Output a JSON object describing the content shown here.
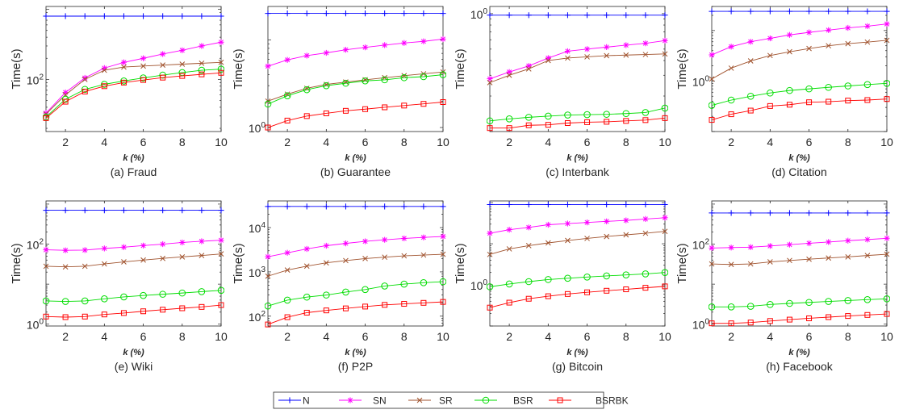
{
  "figure": {
    "legend": {
      "placement": "bottom-center",
      "items": [
        {
          "name": "N",
          "color": "#0000ff",
          "marker": "plus"
        },
        {
          "name": "SN",
          "color": "#ff00ff",
          "marker": "asterisk"
        },
        {
          "name": "SR",
          "color": "#a0522d",
          "marker": "x"
        },
        {
          "name": "BSR",
          "color": "#00dd00",
          "marker": "circle"
        },
        {
          "name": "BSRBK",
          "color": "#ff0000",
          "marker": "square"
        }
      ]
    }
  },
  "chart_data": [
    {
      "type": "line",
      "caption": "(a) Fraud",
      "xlabel": "k (%)",
      "ylabel": "Time(s)",
      "yscale": "log",
      "ylim": [
        18,
        1100
      ],
      "xlim": [
        1,
        10
      ],
      "grid": false,
      "x": [
        1,
        2,
        3,
        4,
        5,
        6,
        7,
        8,
        9,
        10
      ],
      "yticks": [
        {
          "value": 100,
          "base": "10",
          "exp": "2"
        }
      ],
      "xticks": [
        2,
        4,
        6,
        8,
        10
      ],
      "series": [
        {
          "name": "N",
          "values": [
            800,
            800,
            800,
            800,
            800,
            800,
            800,
            800,
            800,
            800
          ]
        },
        {
          "name": "SN",
          "values": [
            33,
            65,
            105,
            145,
            175,
            200,
            230,
            260,
            300,
            340
          ]
        },
        {
          "name": "SR",
          "values": [
            32,
            60,
            100,
            135,
            150,
            155,
            160,
            165,
            170,
            175
          ]
        },
        {
          "name": "BSR",
          "values": [
            29,
            52,
            72,
            85,
            95,
            105,
            115,
            125,
            135,
            140
          ]
        },
        {
          "name": "BSRBK",
          "values": [
            28,
            48,
            67,
            80,
            90,
            98,
            106,
            112,
            118,
            124
          ]
        }
      ]
    },
    {
      "type": "line",
      "caption": "(b) Guarantee",
      "xlabel": "k (%)",
      "ylabel": "Time(s)",
      "yscale": "log",
      "ylim": [
        0.9,
        24
      ],
      "xlim": [
        1,
        10
      ],
      "grid": false,
      "x": [
        1,
        2,
        3,
        4,
        5,
        6,
        7,
        8,
        9,
        10
      ],
      "yticks": [
        {
          "value": 1,
          "base": "10",
          "exp": "0"
        }
      ],
      "xticks": [
        2,
        4,
        6,
        8,
        10
      ],
      "series": [
        {
          "name": "N",
          "values": [
            20,
            20,
            20,
            20,
            20,
            20,
            20,
            20,
            20,
            20
          ]
        },
        {
          "name": "SN",
          "values": [
            5.0,
            5.9,
            6.6,
            7.1,
            7.7,
            8.2,
            8.7,
            9.2,
            9.6,
            10.2
          ]
        },
        {
          "name": "SR",
          "values": [
            2.0,
            2.4,
            2.8,
            3.1,
            3.3,
            3.5,
            3.7,
            3.9,
            4.1,
            4.3
          ]
        },
        {
          "name": "BSR",
          "values": [
            1.85,
            2.3,
            2.7,
            3.0,
            3.2,
            3.4,
            3.5,
            3.7,
            3.8,
            4.0
          ]
        },
        {
          "name": "BSRBK",
          "values": [
            1.0,
            1.2,
            1.35,
            1.45,
            1.55,
            1.62,
            1.7,
            1.78,
            1.86,
            1.95
          ]
        }
      ]
    },
    {
      "type": "line",
      "caption": "(c) Interbank",
      "xlabel": "k (%)",
      "ylabel": "Time(s)",
      "yscale": "log",
      "ylim": [
        0.1,
        1.15
      ],
      "xlim": [
        1,
        10
      ],
      "grid": false,
      "x": [
        1,
        2,
        3,
        4,
        5,
        6,
        7,
        8,
        9,
        10
      ],
      "yticks": [
        {
          "value": 1,
          "base": "10",
          "exp": "0"
        }
      ],
      "xticks": [
        2,
        4,
        6,
        8,
        10
      ],
      "series": [
        {
          "name": "N",
          "values": [
            0.97,
            0.97,
            0.97,
            0.97,
            0.97,
            0.97,
            0.97,
            0.97,
            0.97,
            0.97
          ]
        },
        {
          "name": "SN",
          "values": [
            0.28,
            0.32,
            0.36,
            0.42,
            0.48,
            0.5,
            0.52,
            0.54,
            0.56,
            0.59
          ]
        },
        {
          "name": "SR",
          "values": [
            0.26,
            0.3,
            0.34,
            0.4,
            0.42,
            0.43,
            0.44,
            0.445,
            0.45,
            0.455
          ]
        },
        {
          "name": "BSR",
          "values": [
            0.123,
            0.128,
            0.132,
            0.135,
            0.138,
            0.139,
            0.14,
            0.142,
            0.145,
            0.158
          ]
        },
        {
          "name": "BSRBK",
          "values": [
            0.107,
            0.107,
            0.113,
            0.114,
            0.118,
            0.12,
            0.121,
            0.123,
            0.125,
            0.13
          ]
        }
      ]
    },
    {
      "type": "line",
      "caption": "(d) Citation",
      "xlabel": "k (%)",
      "ylabel": "Time(s)",
      "yscale": "log",
      "ylim": [
        0.1,
        30
      ],
      "xlim": [
        1,
        10
      ],
      "grid": false,
      "x": [
        1,
        2,
        3,
        4,
        5,
        6,
        7,
        8,
        9,
        10
      ],
      "yticks": [
        {
          "value": 1,
          "base": "10",
          "exp": "0"
        }
      ],
      "xticks": [
        2,
        4,
        6,
        8,
        10
      ],
      "series": [
        {
          "name": "N",
          "values": [
            24,
            24,
            24,
            24,
            24,
            24,
            24,
            24,
            24,
            24
          ]
        },
        {
          "name": "SN",
          "values": [
            3.3,
            4.8,
            6.0,
            7.0,
            8.2,
            9.2,
            10.2,
            11.3,
            12.2,
            13.5
          ]
        },
        {
          "name": "SR",
          "values": [
            1.1,
            1.8,
            2.5,
            3.2,
            3.8,
            4.4,
            5.0,
            5.5,
            5.9,
            6.4
          ]
        },
        {
          "name": "BSR",
          "values": [
            0.33,
            0.42,
            0.5,
            0.58,
            0.65,
            0.7,
            0.75,
            0.8,
            0.85,
            0.9
          ]
        },
        {
          "name": "BSRBK",
          "values": [
            0.17,
            0.22,
            0.26,
            0.32,
            0.34,
            0.38,
            0.39,
            0.41,
            0.42,
            0.44
          ]
        }
      ]
    },
    {
      "type": "line",
      "caption": "(e) Wiki",
      "xlabel": "k (%)",
      "ylabel": "Time(s)",
      "yscale": "log",
      "ylim": [
        0.9,
        1200
      ],
      "xlim": [
        1,
        10
      ],
      "grid": false,
      "x": [
        1,
        2,
        3,
        4,
        5,
        6,
        7,
        8,
        9,
        10
      ],
      "yticks": [
        {
          "value": 1,
          "base": "10",
          "exp": "0"
        },
        {
          "value": 100,
          "base": "10",
          "exp": "2"
        }
      ],
      "xticks": [
        2,
        4,
        6,
        8,
        10
      ],
      "series": [
        {
          "name": "N",
          "values": [
            700,
            700,
            700,
            700,
            700,
            700,
            700,
            700,
            700,
            700
          ]
        },
        {
          "name": "SN",
          "values": [
            72,
            70,
            71,
            78,
            84,
            92,
            100,
            110,
            118,
            125
          ]
        },
        {
          "name": "SR",
          "values": [
            28,
            27,
            28,
            32,
            36,
            40,
            44,
            48,
            52,
            57
          ]
        },
        {
          "name": "BSR",
          "values": [
            3.8,
            3.7,
            3.8,
            4.3,
            4.8,
            5.2,
            5.6,
            6.0,
            6.5,
            7.0
          ]
        },
        {
          "name": "BSRBK",
          "values": [
            1.55,
            1.5,
            1.55,
            1.75,
            1.9,
            2.1,
            2.3,
            2.5,
            2.7,
            3.0
          ]
        }
      ]
    },
    {
      "type": "line",
      "caption": "(f) P2P",
      "xlabel": "k (%)",
      "ylabel": "Time(s)",
      "yscale": "log",
      "ylim": [
        60,
        40000
      ],
      "xlim": [
        1,
        10
      ],
      "grid": false,
      "x": [
        1,
        2,
        3,
        4,
        5,
        6,
        7,
        8,
        9,
        10
      ],
      "yticks": [
        {
          "value": 100,
          "base": "10",
          "exp": "2"
        },
        {
          "value": 1000,
          "base": "10",
          "exp": "3"
        },
        {
          "value": 10000,
          "base": "10",
          "exp": "4"
        }
      ],
      "xticks": [
        2,
        4,
        6,
        8,
        10
      ],
      "series": [
        {
          "name": "N",
          "values": [
            30000,
            30000,
            30000,
            30000,
            30000,
            30000,
            30000,
            30000,
            30000,
            30000
          ]
        },
        {
          "name": "SN",
          "values": [
            2200,
            2700,
            3300,
            3900,
            4400,
            4900,
            5300,
            5700,
            6000,
            6300
          ]
        },
        {
          "name": "SR",
          "values": [
            800,
            1100,
            1350,
            1600,
            1800,
            2000,
            2150,
            2300,
            2400,
            2500
          ]
        },
        {
          "name": "BSR",
          "values": [
            170,
            230,
            270,
            300,
            350,
            400,
            480,
            530,
            570,
            600
          ]
        },
        {
          "name": "BSRBK",
          "values": [
            65,
            95,
            120,
            135,
            150,
            165,
            180,
            190,
            200,
            210
          ]
        }
      ]
    },
    {
      "type": "line",
      "caption": "(g) Bitcoin",
      "xlabel": "k (%)",
      "ylabel": "Time(s)",
      "yscale": "log",
      "ylim": [
        0.1,
        110
      ],
      "xlim": [
        1,
        10
      ],
      "grid": false,
      "x": [
        1,
        2,
        3,
        4,
        5,
        6,
        7,
        8,
        9,
        10
      ],
      "yticks": [
        {
          "value": 1,
          "base": "10",
          "exp": "0"
        }
      ],
      "xticks": [
        2,
        4,
        6,
        8,
        10
      ],
      "series": [
        {
          "name": "N",
          "values": [
            90,
            90,
            90,
            90,
            90,
            90,
            90,
            90,
            90,
            90
          ]
        },
        {
          "name": "SN",
          "values": [
            18,
            22,
            25,
            29,
            31,
            33,
            35,
            37,
            40,
            43
          ]
        },
        {
          "name": "SR",
          "values": [
            5.5,
            7.5,
            9.0,
            10.5,
            12,
            13.5,
            15,
            16.5,
            18,
            20
          ]
        },
        {
          "name": "BSR",
          "values": [
            0.9,
            1.05,
            1.2,
            1.35,
            1.45,
            1.55,
            1.65,
            1.75,
            1.85,
            2.0
          ]
        },
        {
          "name": "BSRBK",
          "values": [
            0.28,
            0.37,
            0.46,
            0.53,
            0.6,
            0.66,
            0.72,
            0.78,
            0.85,
            0.92
          ]
        }
      ]
    },
    {
      "type": "line",
      "caption": "(h) Facebook",
      "xlabel": "k (%)",
      "ylabel": "Time(s)",
      "yscale": "log",
      "ylim": [
        0.9,
        1200
      ],
      "xlim": [
        1,
        10
      ],
      "grid": false,
      "x": [
        1,
        2,
        3,
        4,
        5,
        6,
        7,
        8,
        9,
        10
      ],
      "yticks": [
        {
          "value": 1,
          "base": "10",
          "exp": "0"
        },
        {
          "value": 100,
          "base": "10",
          "exp": "2"
        }
      ],
      "xticks": [
        2,
        4,
        6,
        8,
        10
      ],
      "series": [
        {
          "name": "N",
          "values": [
            600,
            600,
            600,
            600,
            600,
            600,
            600,
            600,
            600,
            600
          ]
        },
        {
          "name": "SN",
          "values": [
            80,
            82,
            84,
            90,
            97,
            105,
            113,
            122,
            130,
            140
          ]
        },
        {
          "name": "SR",
          "values": [
            32,
            31,
            32,
            36,
            39,
            42,
            45,
            48,
            52,
            56
          ]
        },
        {
          "name": "BSR",
          "values": [
            2.7,
            2.7,
            2.8,
            3.1,
            3.3,
            3.5,
            3.7,
            3.9,
            4.1,
            4.3
          ]
        },
        {
          "name": "BSRBK",
          "values": [
            1.05,
            1.05,
            1.1,
            1.2,
            1.3,
            1.4,
            1.5,
            1.6,
            1.7,
            1.8
          ]
        }
      ]
    }
  ]
}
